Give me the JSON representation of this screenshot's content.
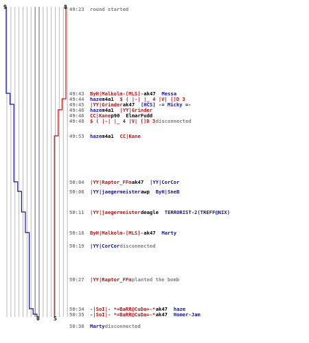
{
  "colors": {
    "ct": "#1010b0",
    "t": "#c01010",
    "time": "#808080",
    "grid": "#b8b8b8",
    "gridDark": "#606060",
    "neutral": "#000000",
    "dotted": "#b0b0b0"
  },
  "counts": {
    "ct_start": "9",
    "t_start": "8",
    "ct_end": "0",
    "t_end": "5"
  },
  "events": [
    {
      "time": "49:23",
      "parts": [
        {
          "text": "round started",
          "color": "time"
        }
      ]
    },
    {
      "time": "49:43",
      "parts": [
        {
          "text": "ByH|Malkolm-[MLS]-",
          "color": "t"
        },
        {
          "text": " ak47 ",
          "color": "neutral"
        },
        {
          "text": "Messa",
          "color": "ct"
        }
      ]
    },
    {
      "time": "49:44",
      "parts": [
        {
          "text": "haze",
          "color": "ct"
        },
        {
          "text": " m4a1 ",
          "color": "neutral"
        },
        {
          "text": "$ ( |-| |_ 4 |V| []D 3",
          "color": "t"
        }
      ]
    },
    {
      "time": "49:45",
      "parts": [
        {
          "text": "|YY|Grinder",
          "color": "t"
        },
        {
          "text": " ak47 ",
          "color": "neutral"
        },
        {
          "text": "[HCS] -= Micky =-",
          "color": "ct"
        }
      ]
    },
    {
      "time": "49:46",
      "parts": [
        {
          "text": "haze",
          "color": "ct"
        },
        {
          "text": " m4a1 ",
          "color": "neutral"
        },
        {
          "text": "|YY|Grinder",
          "color": "t"
        }
      ]
    },
    {
      "time": "49:46",
      "parts": [
        {
          "text": "CC|Kane",
          "color": "t"
        },
        {
          "text": " p90 ",
          "color": "neutral"
        },
        {
          "text": "ElmarFudd",
          "color": "neutral"
        }
      ]
    },
    {
      "time": "49:48",
      "parts": [
        {
          "text": "$ ( |-| |_ 4 |V| []D 3",
          "color": "t"
        },
        {
          "text": " disconnected",
          "color": "time"
        }
      ]
    },
    {
      "time": "49:53",
      "parts": [
        {
          "text": "haze",
          "color": "ct"
        },
        {
          "text": " m4a1 ",
          "color": "neutral"
        },
        {
          "text": "CC|Kane",
          "color": "t"
        }
      ]
    },
    {
      "time": "50:04",
      "parts": [
        {
          "text": "|YY|Raptor_FFm",
          "color": "t"
        },
        {
          "text": " ak47 ",
          "color": "neutral"
        },
        {
          "text": "|YY|CorCor",
          "color": "ct"
        }
      ]
    },
    {
      "time": "50:06",
      "parts": [
        {
          "text": "|YY|jaegermeister",
          "color": "ct"
        },
        {
          "text": " awp ",
          "color": "neutral"
        },
        {
          "text": "ByH|SneB",
          "color": "ct"
        }
      ]
    },
    {
      "time": "50:11",
      "parts": [
        {
          "text": "|YY|jaegermeister",
          "color": "t"
        },
        {
          "text": " deagle ",
          "color": "neutral"
        },
        {
          "text": "TERRORIST-2(TREFF@NIX)",
          "color": "ct"
        }
      ]
    },
    {
      "time": "50:16",
      "parts": [
        {
          "text": "ByH|Malkolm-[MLS]-",
          "color": "t"
        },
        {
          "text": " ak47 ",
          "color": "neutral"
        },
        {
          "text": "Marty",
          "color": "ct"
        }
      ]
    },
    {
      "time": "50:19",
      "parts": [
        {
          "text": "|YY|CorCor",
          "color": "ct"
        },
        {
          "text": " disconnected",
          "color": "time"
        }
      ]
    },
    {
      "time": "50:27",
      "parts": [
        {
          "text": "|YY|Raptor_FFm",
          "color": "t"
        },
        {
          "text": " planted the bomb",
          "color": "time"
        }
      ]
    },
    {
      "time": "50:34",
      "parts": [
        {
          "text": "-|SoI|- *=BaRR@CuDa=-*",
          "color": "t"
        },
        {
          "text": " ak47 ",
          "color": "neutral"
        },
        {
          "text": "haze",
          "color": "ct"
        }
      ]
    },
    {
      "time": "50:35",
      "parts": [
        {
          "text": "-|SoI|- *=BaRR@CuDa=-*",
          "color": "t"
        },
        {
          "text": " ak47 ",
          "color": "neutral"
        },
        {
          "text": "Homer-Jam",
          "color": "ct"
        }
      ]
    },
    {
      "time": "50:38",
      "parts": [
        {
          "text": "Marty",
          "color": "ct"
        },
        {
          "text": " disconnected",
          "color": "time"
        }
      ]
    }
  ],
  "ct_alive": [
    9,
    8,
    8,
    7,
    7,
    7,
    7,
    7,
    6,
    5,
    4,
    3,
    3,
    3,
    2,
    1,
    0
  ],
  "t_alive": [
    8,
    8,
    7,
    7,
    6,
    6,
    6,
    5,
    5,
    5,
    5,
    5,
    5,
    5,
    5,
    5,
    5
  ]
}
